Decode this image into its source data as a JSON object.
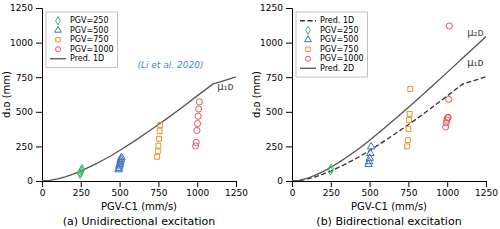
{
  "chart_data": [
    {
      "type": "scatter",
      "title": "(a) Unidirectional excitation",
      "xlabel": "PGV-C1 (mm/s)",
      "ylabel": "d₁ᴅ (mm)",
      "xlim": [
        0,
        1250
      ],
      "ylim": [
        0,
        1250
      ],
      "xticks": [
        0,
        250,
        500,
        750,
        1000,
        1250
      ],
      "yticks": [
        0,
        250,
        500,
        750,
        1000,
        1250
      ],
      "legend": "upper left",
      "annotations": [
        {
          "text": "(Li et al. 2020)",
          "x": 615,
          "y": 820,
          "color": "#4488cc"
        },
        {
          "text": "μ₁ᴅ",
          "x": 1235,
          "y": 680,
          "color": "#444444"
        }
      ],
      "series": [
        {
          "name": "PGV=250",
          "type": "scatter",
          "marker": "diamond",
          "color": "#3dba6e",
          "x": [
            245,
            248,
            252,
            255,
            258
          ],
          "values": [
            50,
            60,
            70,
            78,
            87
          ]
        },
        {
          "name": "PGV=500",
          "type": "scatter",
          "marker": "triangle",
          "color": "#3a6fc4",
          "x": [
            493,
            496,
            498,
            501,
            504,
            506,
            509,
            512
          ],
          "values": [
            82,
            92,
            108,
            118,
            132,
            145,
            158,
            170
          ]
        },
        {
          "name": "PGV=750",
          "type": "scatter",
          "marker": "square",
          "color": "#e8922a",
          "x": [
            742,
            746,
            750,
            754,
            758,
            762
          ],
          "values": [
            175,
            215,
            255,
            305,
            360,
            405
          ]
        },
        {
          "name": "PGV=1000",
          "type": "scatter",
          "marker": "circle",
          "color": "#e85555",
          "x": [
            990,
            994,
            998,
            1002,
            1006,
            1010,
            1014
          ],
          "values": [
            253,
            278,
            365,
            415,
            468,
            520,
            572
          ]
        },
        {
          "name": "Pred. 1D",
          "type": "line",
          "line_style": "solid",
          "color": "#555555",
          "x": [
            0,
            50,
            100,
            150,
            200,
            250,
            300,
            350,
            400,
            450,
            500,
            600,
            700,
            800,
            900,
            1000,
            1100,
            1200,
            1250
          ],
          "values": [
            0,
            4,
            15,
            30,
            50,
            72,
            98,
            126,
            155,
            186,
            220,
            292,
            368,
            447,
            530,
            615,
            700,
            735,
            753
          ]
        }
      ]
    },
    {
      "type": "scatter",
      "title": "(b) Bidirectional excitation",
      "xlabel": "PGV-C1 (mm/s)",
      "ylabel": "d₂ᴅ (mm)",
      "xlim": [
        0,
        1250
      ],
      "ylim": [
        0,
        1250
      ],
      "xticks": [
        0,
        250,
        500,
        750,
        1000,
        1250
      ],
      "yticks": [
        0,
        250,
        500,
        750,
        1000,
        1250
      ],
      "legend": "upper left",
      "annotations": [
        {
          "text": "μ₂ᴅ",
          "x": 1235,
          "y": 1070,
          "color": "#444444"
        },
        {
          "text": "μ₁ᴅ",
          "x": 1235,
          "y": 855,
          "color": "#333333"
        }
      ],
      "series": [
        {
          "name": "Pred. 1D",
          "type": "line",
          "line_style": "dashed",
          "color": "#333333",
          "x": [
            0,
            50,
            100,
            150,
            200,
            250,
            300,
            350,
            400,
            450,
            500,
            600,
            700,
            800,
            900,
            1000,
            1100,
            1200,
            1250
          ],
          "values": [
            0,
            4,
            15,
            30,
            50,
            72,
            98,
            126,
            155,
            186,
            220,
            292,
            368,
            447,
            530,
            615,
            700,
            735,
            753
          ]
        },
        {
          "name": "PGV=250",
          "type": "scatter",
          "marker": "diamond",
          "color": "#3dba6e",
          "x": [
            248,
            252
          ],
          "values": [
            75,
            90
          ]
        },
        {
          "name": "PGV=500",
          "type": "scatter",
          "marker": "triangle",
          "color": "#3a6fc4",
          "x": [
            493,
            497,
            501,
            505,
            510
          ],
          "values": [
            120,
            140,
            165,
            200,
            248
          ]
        },
        {
          "name": "PGV=750",
          "type": "scatter",
          "marker": "square",
          "color": "#e8922a",
          "x": [
            742,
            746,
            750,
            754,
            758,
            762
          ],
          "values": [
            250,
            295,
            375,
            440,
            485,
            665
          ]
        },
        {
          "name": "PGV=1000",
          "type": "scatter",
          "marker": "circle",
          "color": "#e85555",
          "x": [
            990,
            994,
            998,
            1002,
            1006,
            1010,
            1014
          ],
          "values": [
            390,
            420,
            440,
            455,
            460,
            590,
            1120
          ]
        },
        {
          "name": "Pred. 2D",
          "type": "line",
          "line_style": "solid",
          "color": "#555555",
          "x": [
            0,
            50,
            100,
            150,
            200,
            250,
            300,
            350,
            400,
            450,
            500,
            600,
            700,
            800,
            900,
            1000,
            1100,
            1200,
            1250
          ],
          "values": [
            0,
            5,
            20,
            42,
            68,
            99,
            133,
            170,
            209,
            250,
            294,
            387,
            483,
            582,
            683,
            785,
            888,
            992,
            1044
          ]
        }
      ]
    }
  ]
}
